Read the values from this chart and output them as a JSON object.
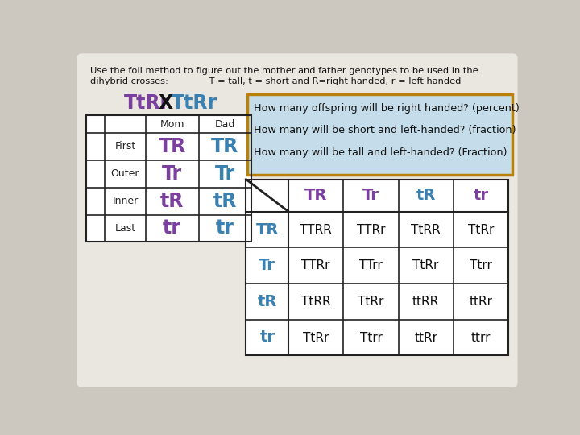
{
  "bg_color": "#cdc8bf",
  "panel_bg": "#eae6e0",
  "title_line1": "Use the foil method to figure out the mother and father genotypes to be used in the",
  "title_line2": "dihybrid crosses:              T = tall, t = short and R=right handed, r = left handed",
  "cross_purple": "#7b3fa0",
  "cross_blue": "#3a80b0",
  "foil_rows": [
    {
      "label": "First",
      "mom": "TR",
      "dad": "TR"
    },
    {
      "label": "Outer",
      "mom": "Tr",
      "dad": "Tr"
    },
    {
      "label": "Inner",
      "mom": "tR",
      "dad": "tR"
    },
    {
      "label": "Last",
      "mom": "tr",
      "dad": "tr"
    }
  ],
  "foil_mom_colors": [
    "#7b3fa0",
    "#7b3fa0",
    "#7b3fa0",
    "#7b3fa0"
  ],
  "foil_dad_colors": [
    "#3a80b0",
    "#3a80b0",
    "#3a80b0",
    "#3a80b0"
  ],
  "questions": [
    "How many offspring will be right handed? (percent)",
    "How many will be short and left-handed? (fraction)",
    "How many will be tall and left-handed? (Fraction)"
  ],
  "question_box_color": "#c5dcea",
  "question_box_border": "#b8820a",
  "punnett_col_headers": [
    "TR",
    "Tr",
    "tR",
    "tr"
  ],
  "punnett_col_colors": [
    "#7b3fa0",
    "#7b3fa0",
    "#3a80b0",
    "#7b3fa0"
  ],
  "punnett_row_headers": [
    "TR",
    "Tr",
    "tR",
    "tr"
  ],
  "punnett_row_colors": [
    "#3a80b0",
    "#3a80b0",
    "#3a80b0",
    "#3a80b0"
  ],
  "punnett_cells": [
    [
      "TTRR",
      "TTRr",
      "TtRR",
      "TtRr"
    ],
    [
      "TTRr",
      "TTrr",
      "TtRr",
      "Ttrr"
    ],
    [
      "TtRR",
      "TtRr",
      "ttRR",
      "ttRr"
    ],
    [
      "TtRr",
      "Ttrr",
      "ttRr",
      "ttrr"
    ]
  ],
  "cell_text_color": "#111111",
  "white_bg": "#ffffff",
  "grid_color": "#222222"
}
